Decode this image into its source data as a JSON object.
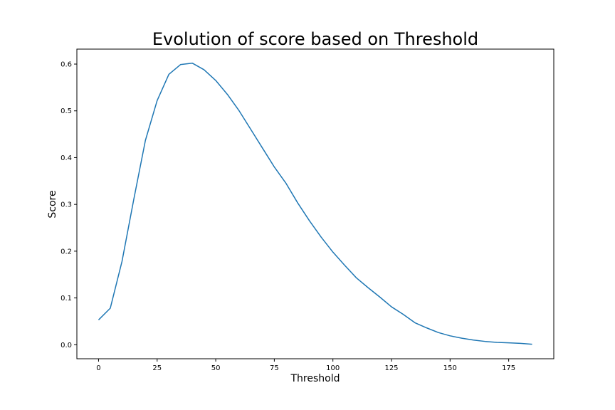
{
  "chart_data": {
    "type": "line",
    "title": "Evolution of score based on Threshold",
    "xlabel": "Threshold",
    "ylabel": "Score",
    "xlim": [
      -9.25,
      194.25
    ],
    "ylim": [
      -0.03,
      0.632
    ],
    "xticks": [
      0,
      25,
      50,
      75,
      100,
      125,
      150,
      175
    ],
    "xtick_labels": [
      "0",
      "25",
      "50",
      "75",
      "100",
      "125",
      "150",
      "175"
    ],
    "yticks": [
      0.0,
      0.1,
      0.2,
      0.3,
      0.4,
      0.5,
      0.6
    ],
    "ytick_labels": [
      "0.0",
      "0.1",
      "0.2",
      "0.3",
      "0.4",
      "0.5",
      "0.6"
    ],
    "grid": false,
    "legend": false,
    "series": [
      {
        "color": "#1f77b4",
        "x": [
          0,
          5,
          10,
          15,
          20,
          25,
          30,
          35,
          40,
          45,
          50,
          55,
          60,
          65,
          70,
          75,
          80,
          85,
          90,
          95,
          100,
          105,
          110,
          115,
          120,
          125,
          130,
          135,
          140,
          145,
          150,
          155,
          160,
          165,
          170,
          175,
          180,
          185
        ],
        "y": [
          0.053,
          0.078,
          0.178,
          0.31,
          0.437,
          0.522,
          0.578,
          0.599,
          0.602,
          0.588,
          0.565,
          0.535,
          0.5,
          0.46,
          0.42,
          0.38,
          0.345,
          0.303,
          0.265,
          0.23,
          0.198,
          0.17,
          0.143,
          0.122,
          0.102,
          0.081,
          0.065,
          0.047,
          0.036,
          0.026,
          0.019,
          0.014,
          0.01,
          0.007,
          0.005,
          0.004,
          0.003,
          0.001
        ]
      }
    ]
  }
}
